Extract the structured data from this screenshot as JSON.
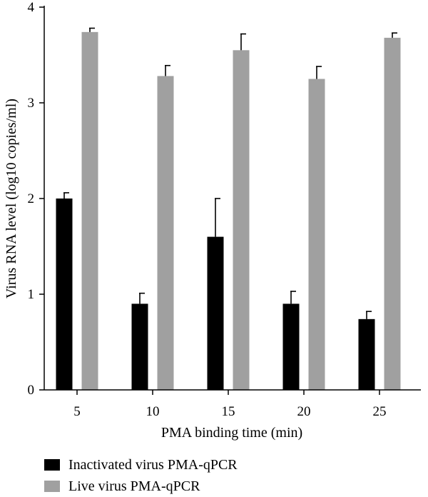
{
  "chart_data": {
    "type": "bar",
    "categories": [
      "5",
      "10",
      "15",
      "20",
      "25"
    ],
    "series": [
      {
        "name": "Inactivated virus PMA-qPCR",
        "color": "#000000",
        "values": [
          2.0,
          0.9,
          1.6,
          0.9,
          0.74
        ],
        "errors": [
          0.06,
          0.11,
          0.4,
          0.13,
          0.08
        ]
      },
      {
        "name": "Live virus PMA-qPCR",
        "color": "#a0a0a0",
        "values": [
          3.74,
          3.28,
          3.55,
          3.25,
          3.68
        ],
        "errors": [
          0.04,
          0.11,
          0.17,
          0.13,
          0.05
        ]
      }
    ],
    "xlabel": "PMA binding time (min)",
    "ylabel": "Virus RNA level (log10 copies/ml)",
    "yticks": [
      0,
      1,
      2,
      3,
      4
    ],
    "ylim": [
      0,
      4
    ],
    "grid": false,
    "legend_position": "bottom-left"
  }
}
